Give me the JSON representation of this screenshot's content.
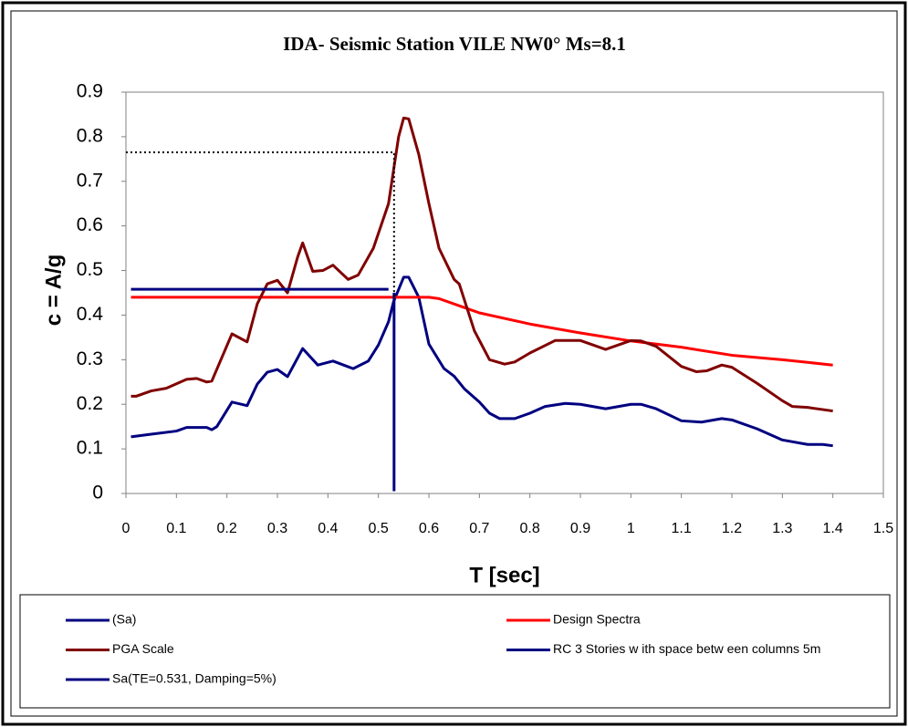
{
  "chart_data": {
    "type": "line",
    "title": "IDA- Seismic Station VILE NW0° Ms=8.1",
    "x_label": "T [sec]",
    "y_label": "c =  A/g",
    "xlim": [
      0,
      1.5
    ],
    "ylim": [
      0,
      0.9
    ],
    "xticks": [
      0,
      0.1,
      0.2,
      0.3,
      0.4,
      0.5,
      0.6,
      0.7,
      0.8,
      0.9,
      1,
      1.1,
      1.2,
      1.3,
      1.4,
      1.5
    ],
    "yticks": [
      0,
      0.1,
      0.2,
      0.3,
      0.4,
      0.5,
      0.6,
      0.7,
      0.8,
      0.9
    ],
    "grid": false,
    "legend": "bottom",
    "series": [
      {
        "name": "(Sa)",
        "color": "#000080",
        "x": [
          0.01,
          0.05,
          0.1,
          0.12,
          0.16,
          0.17,
          0.18,
          0.21,
          0.24,
          0.26,
          0.28,
          0.3,
          0.32,
          0.35,
          0.38,
          0.41,
          0.45,
          0.48,
          0.5,
          0.52,
          0.53,
          0.55,
          0.56,
          0.58,
          0.6,
          0.63,
          0.65,
          0.67,
          0.7,
          0.72,
          0.74,
          0.77,
          0.8,
          0.83,
          0.87,
          0.9,
          0.95,
          1.0,
          1.02,
          1.05,
          1.1,
          1.14,
          1.18,
          1.2,
          1.25,
          1.3,
          1.35,
          1.38,
          1.4
        ],
        "values": [
          0.127,
          0.133,
          0.14,
          0.148,
          0.148,
          0.143,
          0.15,
          0.205,
          0.197,
          0.245,
          0.272,
          0.278,
          0.262,
          0.325,
          0.288,
          0.297,
          0.28,
          0.297,
          0.333,
          0.385,
          0.43,
          0.485,
          0.485,
          0.44,
          0.335,
          0.28,
          0.263,
          0.235,
          0.205,
          0.18,
          0.168,
          0.168,
          0.18,
          0.195,
          0.202,
          0.2,
          0.19,
          0.2,
          0.2,
          0.19,
          0.163,
          0.16,
          0.168,
          0.165,
          0.145,
          0.12,
          0.11,
          0.11,
          0.107
        ]
      },
      {
        "name": "Design Spectra",
        "color": "#ff0000",
        "x": [
          0.01,
          0.6,
          0.62,
          0.7,
          0.8,
          0.9,
          1.0,
          1.1,
          1.2,
          1.3,
          1.4
        ],
        "values": [
          0.44,
          0.44,
          0.437,
          0.405,
          0.38,
          0.36,
          0.342,
          0.328,
          0.31,
          0.3,
          0.288
        ]
      },
      {
        "name": "PGA Scale",
        "color": "#800000",
        "x": [
          0.01,
          0.02,
          0.05,
          0.08,
          0.12,
          0.14,
          0.16,
          0.17,
          0.21,
          0.24,
          0.26,
          0.28,
          0.3,
          0.32,
          0.34,
          0.35,
          0.37,
          0.39,
          0.41,
          0.44,
          0.46,
          0.49,
          0.52,
          0.54,
          0.55,
          0.56,
          0.58,
          0.6,
          0.62,
          0.65,
          0.66,
          0.69,
          0.72,
          0.75,
          0.77,
          0.8,
          0.85,
          0.9,
          0.95,
          1.0,
          1.02,
          1.05,
          1.1,
          1.13,
          1.15,
          1.18,
          1.2,
          1.25,
          1.3,
          1.32,
          1.35,
          1.4
        ],
        "values": [
          0.218,
          0.218,
          0.23,
          0.236,
          0.256,
          0.258,
          0.25,
          0.252,
          0.358,
          0.34,
          0.425,
          0.47,
          0.478,
          0.45,
          0.53,
          0.562,
          0.498,
          0.5,
          0.512,
          0.48,
          0.49,
          0.55,
          0.65,
          0.8,
          0.842,
          0.84,
          0.76,
          0.65,
          0.55,
          0.48,
          0.47,
          0.365,
          0.3,
          0.29,
          0.295,
          0.315,
          0.343,
          0.343,
          0.323,
          0.343,
          0.342,
          0.33,
          0.285,
          0.273,
          0.275,
          0.288,
          0.283,
          0.247,
          0.208,
          0.195,
          0.193,
          0.185
        ]
      },
      {
        "name": "RC 3 Stories w ith space betw een columns 5m",
        "color": "#000080",
        "x": [
          0.531,
          0.531
        ],
        "values": [
          0.005,
          0.45
        ]
      },
      {
        "name": "Sa(TE=0.531, Damping=5%)",
        "color": "#000080",
        "x": [
          0.01,
          0.52
        ],
        "values": [
          0.458,
          0.458
        ]
      },
      {
        "color": "#000000",
        "dash": true,
        "x": [
          0.0,
          0.531,
          0.531
        ],
        "values": [
          0.765,
          0.765,
          0.44
        ]
      }
    ]
  }
}
